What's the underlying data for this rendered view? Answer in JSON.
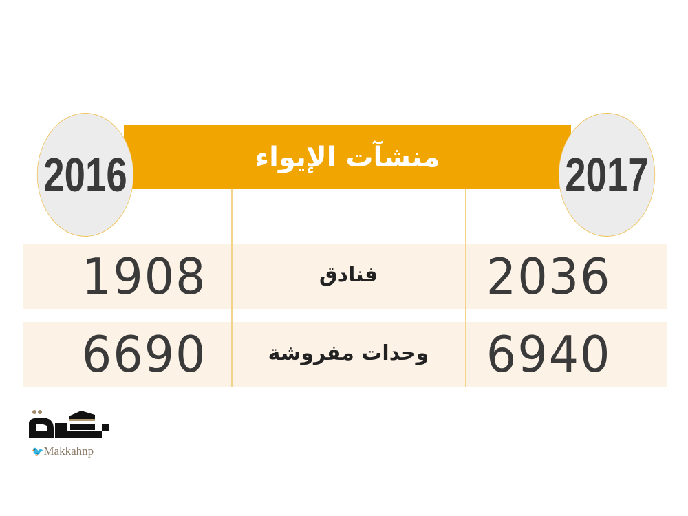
{
  "chart_data": {
    "type": "table",
    "title": "منشآت الإيواء",
    "columns": [
      "2017",
      "",
      "2016"
    ],
    "rows": [
      {
        "label": "فنادق",
        "2017": "2036",
        "2016": "1908"
      },
      {
        "label": "وحدات مفروشة",
        "2017": "6940",
        "2016": "6690"
      }
    ]
  },
  "colors": {
    "accent": "#f0a500",
    "row_band": "#fdf2e6",
    "circle": "#ececec"
  },
  "logo": {
    "text": "مكة",
    "handle": "Makkahnp",
    "icon": "twitter-bird-icon"
  }
}
